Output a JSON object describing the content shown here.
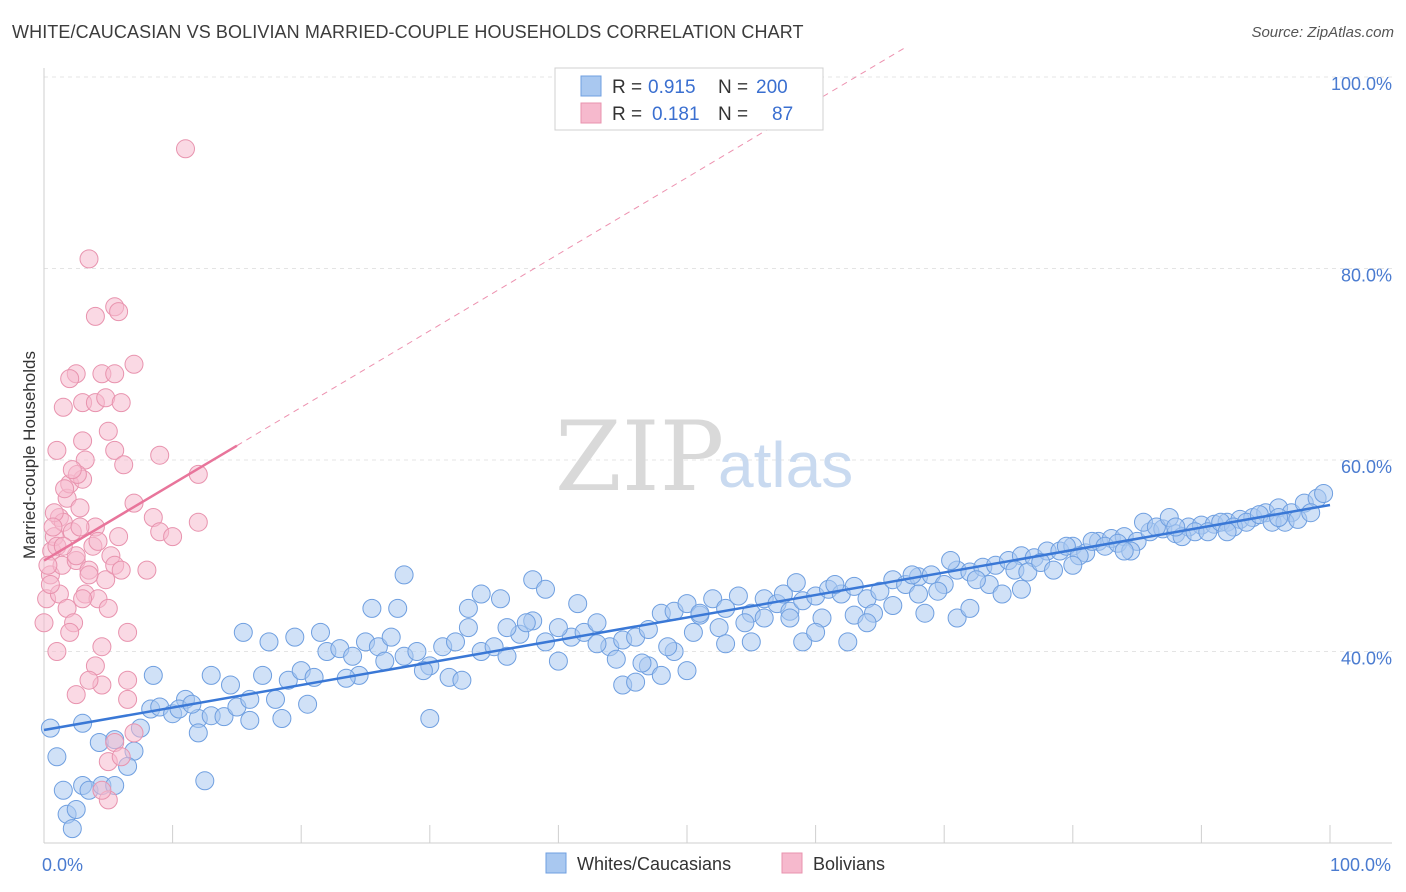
{
  "header": {
    "title": "WHITE/CAUCASIAN VS BOLIVIAN MARRIED-COUPLE HOUSEHOLDS CORRELATION CHART",
    "source": "Source: ZipAtlas.com"
  },
  "watermark": {
    "zip": "ZIP",
    "atlas": "atlas"
  },
  "legend": {
    "rows": [
      {
        "r_label": "R =",
        "r_value": "0.915",
        "n_label": "N =",
        "n_value": "200",
        "color": "#a9c8f0"
      },
      {
        "r_label": "R =",
        "r_value": "0.181",
        "n_label": "N =",
        "n_value": "87",
        "color": "#f6b9cd"
      }
    ]
  },
  "bottom_legend": [
    {
      "label": "Whites/Caucasians",
      "color": "#a9c8f0"
    },
    {
      "label": "Bolivians",
      "color": "#f6b9cd"
    }
  ],
  "chart_data": {
    "type": "scatter",
    "title": "WHITE/CAUCASIAN VS BOLIVIAN MARRIED-COUPLE HOUSEHOLDS CORRELATION CHART",
    "xlabel": "",
    "ylabel": "Married-couple Households",
    "xlim": [
      0,
      100
    ],
    "ylim": [
      20,
      103
    ],
    "x_tick_labels": [
      "0.0%",
      "100.0%"
    ],
    "y_ticks": [
      40,
      60,
      80,
      100
    ],
    "y_tick_labels": [
      "40.0%",
      "60.0%",
      "80.0%",
      "100.0%"
    ],
    "grid": true,
    "colors": {
      "whites": "#3a78d6",
      "bolivians": "#e8759b",
      "whites_fill": "#a9c8f0",
      "bolivians_fill": "#f6b9cd"
    },
    "series": [
      {
        "name": "Whites/Caucasians",
        "trend": {
          "x": [
            0,
            100
          ],
          "y": [
            31.8,
            55.3
          ]
        },
        "points": [
          [
            0.5,
            32.0
          ],
          [
            1.0,
            29.0
          ],
          [
            1.5,
            25.5
          ],
          [
            1.8,
            23.0
          ],
          [
            2.2,
            21.5
          ],
          [
            2.5,
            23.5
          ],
          [
            3.0,
            26.0
          ],
          [
            3.5,
            25.5
          ],
          [
            4.5,
            26.0
          ],
          [
            5.5,
            26.0
          ],
          [
            4.3,
            30.5
          ],
          [
            5.5,
            30.8
          ],
          [
            7.0,
            29.6
          ],
          [
            7.5,
            32.0
          ],
          [
            8.3,
            34.0
          ],
          [
            9.0,
            34.2
          ],
          [
            10.0,
            33.5
          ],
          [
            11.0,
            35.0
          ],
          [
            12.0,
            33.0
          ],
          [
            13.0,
            33.3
          ],
          [
            14.0,
            33.2
          ],
          [
            15.0,
            34.2
          ],
          [
            16.0,
            35.0
          ],
          [
            17.0,
            37.5
          ],
          [
            18.0,
            35.0
          ],
          [
            19.0,
            37.0
          ],
          [
            20.0,
            38.0
          ],
          [
            21.0,
            37.3
          ],
          [
            22.0,
            40.0
          ],
          [
            23.0,
            40.3
          ],
          [
            24.0,
            39.5
          ],
          [
            25.0,
            41.0
          ],
          [
            26.0,
            40.5
          ],
          [
            27.0,
            41.5
          ],
          [
            28.0,
            39.5
          ],
          [
            29.0,
            40.0
          ],
          [
            30.0,
            38.5
          ],
          [
            31.0,
            40.5
          ],
          [
            32.0,
            41.0
          ],
          [
            33.0,
            42.5
          ],
          [
            34.0,
            40.0
          ],
          [
            35.0,
            40.5
          ],
          [
            36.0,
            39.5
          ],
          [
            37.0,
            41.8
          ],
          [
            38.0,
            43.2
          ],
          [
            39.0,
            41.0
          ],
          [
            40.0,
            39.0
          ],
          [
            41.0,
            41.5
          ],
          [
            42.0,
            42.0
          ],
          [
            43.0,
            43.0
          ],
          [
            44.0,
            40.5
          ],
          [
            45.0,
            41.2
          ],
          [
            46.0,
            41.5
          ],
          [
            47.0,
            42.3
          ],
          [
            48.0,
            44.0
          ],
          [
            49.0,
            44.2
          ],
          [
            50.0,
            45.0
          ],
          [
            51.0,
            43.8
          ],
          [
            52.0,
            45.5
          ],
          [
            53.0,
            44.5
          ],
          [
            54.0,
            45.8
          ],
          [
            55.0,
            44.0
          ],
          [
            56.0,
            45.5
          ],
          [
            57.0,
            45.0
          ],
          [
            58.0,
            44.2
          ],
          [
            59.0,
            45.3
          ],
          [
            60.0,
            45.8
          ],
          [
            61.0,
            46.5
          ],
          [
            62.0,
            46.0
          ],
          [
            63.0,
            46.8
          ],
          [
            64.0,
            45.5
          ],
          [
            65.0,
            46.3
          ],
          [
            66.0,
            47.5
          ],
          [
            67.0,
            47.0
          ],
          [
            68.0,
            47.8
          ],
          [
            69.0,
            48.0
          ],
          [
            70.0,
            47.0
          ],
          [
            71.0,
            48.5
          ],
          [
            72.0,
            48.3
          ],
          [
            73.0,
            48.8
          ],
          [
            74.0,
            49.0
          ],
          [
            75.0,
            49.5
          ],
          [
            76.0,
            50.0
          ],
          [
            77.0,
            49.8
          ],
          [
            78.0,
            50.5
          ],
          [
            79.0,
            50.5
          ],
          [
            80.0,
            51.0
          ],
          [
            81.0,
            50.3
          ],
          [
            82.0,
            51.5
          ],
          [
            83.0,
            51.8
          ],
          [
            84.0,
            52.0
          ],
          [
            85.0,
            51.5
          ],
          [
            86.0,
            52.5
          ],
          [
            87.0,
            52.8
          ],
          [
            88.0,
            52.3
          ],
          [
            89.0,
            53.0
          ],
          [
            90.0,
            53.2
          ],
          [
            91.0,
            53.3
          ],
          [
            92.0,
            53.5
          ],
          [
            93.0,
            53.8
          ],
          [
            94.0,
            54.0
          ],
          [
            95.0,
            54.5
          ],
          [
            96.0,
            55.0
          ],
          [
            97.0,
            54.5
          ],
          [
            98.0,
            55.5
          ],
          [
            99.0,
            56.0
          ],
          [
            8.5,
            37.5
          ],
          [
            13.0,
            37.5
          ],
          [
            14.5,
            36.5
          ],
          [
            12.0,
            31.5
          ],
          [
            16.0,
            32.8
          ],
          [
            18.5,
            33.0
          ],
          [
            20.5,
            34.5
          ],
          [
            24.5,
            37.5
          ],
          [
            25.5,
            44.5
          ],
          [
            27.5,
            44.5
          ],
          [
            28.0,
            48.0
          ],
          [
            30.0,
            33.0
          ],
          [
            31.5,
            37.3
          ],
          [
            33.0,
            44.5
          ],
          [
            34.0,
            46.0
          ],
          [
            36.0,
            42.5
          ],
          [
            38.0,
            47.5
          ],
          [
            37.5,
            43.0
          ],
          [
            39.0,
            46.5
          ],
          [
            40.0,
            42.5
          ],
          [
            41.5,
            45.0
          ],
          [
            43.0,
            40.8
          ],
          [
            45.0,
            36.5
          ],
          [
            46.0,
            36.8
          ],
          [
            47.0,
            38.5
          ],
          [
            48.0,
            37.5
          ],
          [
            49.0,
            40.0
          ],
          [
            50.0,
            38.0
          ],
          [
            51.0,
            44.0
          ],
          [
            52.5,
            42.5
          ],
          [
            53.0,
            40.8
          ],
          [
            55.0,
            41.0
          ],
          [
            56.0,
            43.5
          ],
          [
            57.5,
            46.0
          ],
          [
            58.5,
            47.2
          ],
          [
            59.0,
            41.0
          ],
          [
            60.5,
            43.5
          ],
          [
            61.5,
            47.0
          ],
          [
            62.5,
            41.0
          ],
          [
            63.0,
            43.8
          ],
          [
            64.5,
            44.0
          ],
          [
            66.0,
            44.8
          ],
          [
            67.5,
            48.0
          ],
          [
            68.0,
            46.0
          ],
          [
            69.5,
            46.3
          ],
          [
            70.5,
            49.5
          ],
          [
            71.0,
            43.5
          ],
          [
            72.0,
            44.5
          ],
          [
            73.5,
            47.0
          ],
          [
            74.5,
            46.0
          ],
          [
            75.5,
            48.5
          ],
          [
            76.5,
            48.3
          ],
          [
            77.5,
            49.3
          ],
          [
            78.5,
            48.5
          ],
          [
            79.5,
            51.0
          ],
          [
            80.5,
            50.0
          ],
          [
            81.5,
            51.5
          ],
          [
            82.5,
            51.0
          ],
          [
            83.5,
            51.3
          ],
          [
            84.5,
            50.5
          ],
          [
            85.5,
            53.5
          ],
          [
            86.5,
            53.0
          ],
          [
            87.5,
            54.0
          ],
          [
            88.5,
            52.0
          ],
          [
            89.5,
            52.5
          ],
          [
            90.5,
            52.5
          ],
          [
            91.5,
            53.5
          ],
          [
            92.5,
            53.0
          ],
          [
            93.5,
            53.5
          ],
          [
            94.5,
            54.3
          ],
          [
            95.5,
            53.5
          ],
          [
            96.5,
            53.5
          ],
          [
            97.5,
            53.8
          ],
          [
            98.5,
            54.5
          ],
          [
            99.5,
            56.5
          ],
          [
            10.5,
            34.0
          ],
          [
            11.5,
            34.5
          ],
          [
            15.5,
            42.0
          ],
          [
            17.5,
            41.0
          ],
          [
            19.5,
            41.5
          ],
          [
            21.5,
            42.0
          ],
          [
            23.5,
            37.2
          ],
          [
            26.5,
            39.0
          ],
          [
            29.5,
            38.0
          ],
          [
            32.5,
            37.0
          ],
          [
            35.5,
            45.5
          ],
          [
            44.5,
            39.2
          ],
          [
            46.5,
            38.8
          ],
          [
            48.5,
            40.5
          ],
          [
            50.5,
            42.0
          ],
          [
            54.5,
            43.0
          ],
          [
            58.0,
            43.5
          ],
          [
            60.0,
            42.0
          ],
          [
            64.0,
            43.0
          ],
          [
            68.5,
            44.0
          ],
          [
            72.5,
            47.5
          ],
          [
            76.0,
            46.5
          ],
          [
            80.0,
            49.0
          ],
          [
            84.0,
            50.5
          ],
          [
            88.0,
            53.0
          ],
          [
            92.0,
            52.5
          ],
          [
            96.0,
            54.0
          ],
          [
            12.5,
            26.5
          ],
          [
            6.5,
            28.0
          ],
          [
            3.0,
            32.5
          ]
        ]
      },
      {
        "name": "Bolivians",
        "trend": {
          "x": [
            0,
            15
          ],
          "y": [
            49.5,
            61.5
          ]
        },
        "trend_extended": {
          "x": [
            0,
            100
          ],
          "y": [
            49.5,
            129.5
          ]
        },
        "points": [
          [
            0.0,
            43.0
          ],
          [
            0.2,
            45.5
          ],
          [
            0.5,
            48.0
          ],
          [
            0.6,
            50.5
          ],
          [
            0.8,
            52.0
          ],
          [
            1.0,
            51.0
          ],
          [
            1.2,
            54.0
          ],
          [
            1.4,
            49.0
          ],
          [
            1.5,
            53.5
          ],
          [
            1.8,
            56.0
          ],
          [
            2.0,
            57.5
          ],
          [
            2.2,
            52.5
          ],
          [
            2.5,
            49.5
          ],
          [
            2.8,
            55.0
          ],
          [
            3.0,
            58.0
          ],
          [
            3.2,
            46.0
          ],
          [
            3.5,
            48.5
          ],
          [
            3.8,
            51.0
          ],
          [
            4.0,
            53.0
          ],
          [
            4.2,
            45.5
          ],
          [
            4.5,
            40.5
          ],
          [
            4.8,
            47.5
          ],
          [
            5.0,
            44.5
          ],
          [
            5.2,
            50.0
          ],
          [
            5.5,
            49.0
          ],
          [
            5.8,
            52.0
          ],
          [
            6.0,
            48.5
          ],
          [
            2.5,
            69.0
          ],
          [
            3.0,
            62.0
          ],
          [
            3.2,
            60.0
          ],
          [
            2.6,
            58.5
          ],
          [
            3.0,
            66.0
          ],
          [
            4.0,
            75.0
          ],
          [
            3.5,
            81.0
          ],
          [
            5.5,
            76.0
          ],
          [
            5.8,
            75.5
          ],
          [
            7.0,
            70.0
          ],
          [
            4.5,
            69.0
          ],
          [
            5.5,
            69.0
          ],
          [
            4.0,
            66.0
          ],
          [
            4.8,
            66.5
          ],
          [
            6.0,
            66.0
          ],
          [
            5.0,
            63.0
          ],
          [
            5.5,
            61.0
          ],
          [
            6.2,
            59.5
          ],
          [
            2.2,
            59.0
          ],
          [
            1.5,
            65.5
          ],
          [
            2.0,
            68.5
          ],
          [
            1.0,
            61.0
          ],
          [
            9.0,
            60.5
          ],
          [
            12.0,
            58.5
          ],
          [
            11.0,
            92.5
          ],
          [
            7.0,
            55.5
          ],
          [
            8.5,
            54.0
          ],
          [
            9.0,
            52.5
          ],
          [
            12.0,
            53.5
          ],
          [
            10.0,
            52.0
          ],
          [
            8.0,
            48.5
          ],
          [
            6.5,
            42.0
          ],
          [
            6.5,
            37.0
          ],
          [
            6.5,
            35.0
          ],
          [
            4.5,
            36.5
          ],
          [
            4.0,
            38.5
          ],
          [
            3.5,
            37.0
          ],
          [
            2.5,
            35.5
          ],
          [
            5.0,
            28.5
          ],
          [
            5.5,
            30.5
          ],
          [
            6.0,
            29.0
          ],
          [
            7.0,
            31.5
          ],
          [
            5.0,
            24.5
          ],
          [
            4.5,
            25.5
          ],
          [
            3.0,
            45.5
          ],
          [
            3.5,
            48.0
          ],
          [
            2.5,
            50.0
          ],
          [
            1.5,
            51.0
          ],
          [
            0.8,
            54.5
          ],
          [
            1.2,
            46.0
          ],
          [
            0.5,
            47.0
          ],
          [
            1.8,
            44.5
          ],
          [
            2.3,
            43.0
          ],
          [
            2.0,
            42.0
          ],
          [
            1.0,
            40.0
          ],
          [
            0.3,
            49.0
          ],
          [
            0.7,
            53.0
          ],
          [
            1.6,
            57.0
          ],
          [
            2.8,
            53.0
          ],
          [
            4.2,
            51.5
          ]
        ]
      }
    ]
  }
}
